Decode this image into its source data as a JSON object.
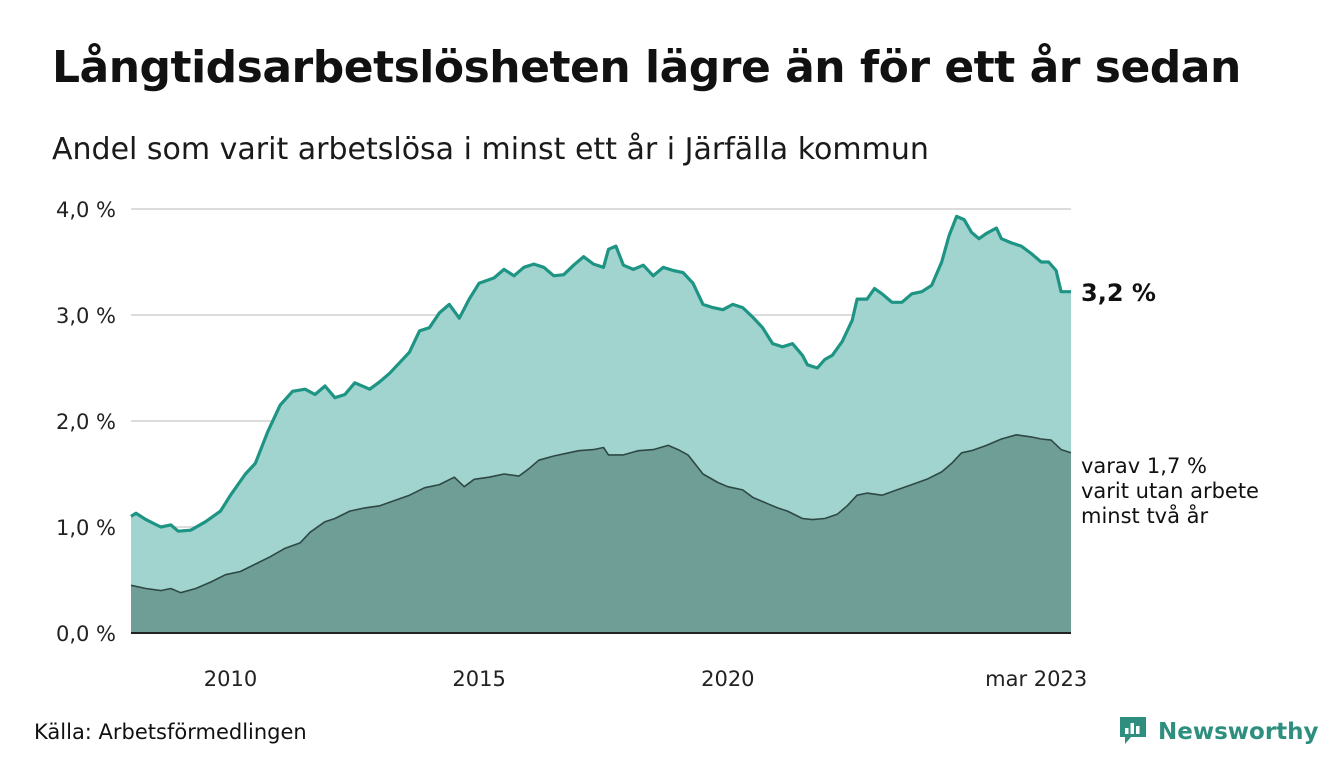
{
  "title": "Långtidsarbetslösheten lägre än för ett år sedan",
  "subtitle": "Andel som varit arbetslösa i minst ett år i Järfälla kommun",
  "source": "Källa: Arbetsförmedlingen",
  "brand": {
    "name": "Newsworthy",
    "icon": "newsworthy-chart-bubble-icon"
  },
  "colors": {
    "upper_line": "#1e9484",
    "upper_fill": "#a1d4ce",
    "lower_fill": "#6f9e96",
    "lower_line": "#2e4945",
    "grid": "#dcdcdc",
    "brand": "#2f8f7f"
  },
  "chart_data": {
    "type": "area",
    "x_start": "2008-01",
    "x_end": "2023-03",
    "x_step": "month",
    "ylim": [
      0,
      4
    ],
    "yticks": [
      "0,0 %",
      "1,0 %",
      "2,0 %",
      "3,0 %",
      "4,0 %"
    ],
    "xticks": [
      "2010",
      "2015",
      "2020",
      "mar 2023"
    ],
    "grid": "horizontal",
    "series": [
      {
        "key": "total",
        "label": "3,2 %",
        "anchors": [
          [
            2008.0,
            1.1
          ],
          [
            2008.1,
            1.13
          ],
          [
            2008.3,
            1.07
          ],
          [
            2008.6,
            1.0
          ],
          [
            2008.8,
            1.02
          ],
          [
            2008.95,
            0.96
          ],
          [
            2009.2,
            0.97
          ],
          [
            2009.5,
            1.05
          ],
          [
            2009.8,
            1.15
          ],
          [
            2010.0,
            1.3
          ],
          [
            2010.3,
            1.5
          ],
          [
            2010.5,
            1.6
          ],
          [
            2010.75,
            1.9
          ],
          [
            2011.0,
            2.15
          ],
          [
            2011.25,
            2.28
          ],
          [
            2011.5,
            2.3
          ],
          [
            2011.7,
            2.25
          ],
          [
            2011.9,
            2.33
          ],
          [
            2012.1,
            2.22
          ],
          [
            2012.3,
            2.25
          ],
          [
            2012.5,
            2.36
          ],
          [
            2012.8,
            2.3
          ],
          [
            2013.0,
            2.37
          ],
          [
            2013.2,
            2.45
          ],
          [
            2013.4,
            2.55
          ],
          [
            2013.6,
            2.65
          ],
          [
            2013.8,
            2.85
          ],
          [
            2014.0,
            2.88
          ],
          [
            2014.2,
            3.02
          ],
          [
            2014.4,
            3.1
          ],
          [
            2014.6,
            2.97
          ],
          [
            2014.8,
            3.15
          ],
          [
            2015.0,
            3.3
          ],
          [
            2015.3,
            3.35
          ],
          [
            2015.5,
            3.43
          ],
          [
            2015.7,
            3.37
          ],
          [
            2015.9,
            3.45
          ],
          [
            2016.1,
            3.48
          ],
          [
            2016.3,
            3.45
          ],
          [
            2016.5,
            3.37
          ],
          [
            2016.7,
            3.38
          ],
          [
            2016.9,
            3.47
          ],
          [
            2017.1,
            3.55
          ],
          [
            2017.3,
            3.48
          ],
          [
            2017.5,
            3.45
          ],
          [
            2017.6,
            3.62
          ],
          [
            2017.75,
            3.65
          ],
          [
            2017.9,
            3.47
          ],
          [
            2018.1,
            3.43
          ],
          [
            2018.3,
            3.47
          ],
          [
            2018.5,
            3.37
          ],
          [
            2018.7,
            3.45
          ],
          [
            2018.9,
            3.42
          ],
          [
            2019.1,
            3.4
          ],
          [
            2019.3,
            3.3
          ],
          [
            2019.5,
            3.1
          ],
          [
            2019.7,
            3.07
          ],
          [
            2019.9,
            3.05
          ],
          [
            2020.1,
            3.1
          ],
          [
            2020.3,
            3.07
          ],
          [
            2020.5,
            2.98
          ],
          [
            2020.7,
            2.88
          ],
          [
            2020.9,
            2.73
          ],
          [
            2021.1,
            2.7
          ],
          [
            2021.3,
            2.73
          ],
          [
            2021.5,
            2.62
          ],
          [
            2021.6,
            2.53
          ],
          [
            2021.8,
            2.5
          ],
          [
            2021.95,
            2.58
          ],
          [
            2022.1,
            2.62
          ],
          [
            2022.3,
            2.75
          ],
          [
            2022.5,
            2.95
          ],
          [
            2022.6,
            3.15
          ],
          [
            2022.8,
            3.15
          ],
          [
            2022.95,
            3.25
          ],
          [
            2023.1,
            3.2
          ],
          [
            2023.3,
            3.12
          ],
          [
            2023.5,
            3.12
          ],
          [
            2023.7,
            3.2
          ],
          [
            2023.9,
            3.22
          ],
          [
            2024.1,
            3.28
          ],
          [
            2024.3,
            3.5
          ],
          [
            2024.45,
            3.75
          ],
          [
            2024.6,
            3.93
          ],
          [
            2024.75,
            3.9
          ],
          [
            2024.9,
            3.78
          ],
          [
            2025.05,
            3.72
          ],
          [
            2025.2,
            3.77
          ],
          [
            2025.4,
            3.82
          ],
          [
            2025.5,
            3.72
          ],
          [
            2025.7,
            3.68
          ],
          [
            2025.9,
            3.65
          ],
          [
            2026.1,
            3.58
          ],
          [
            2026.3,
            3.5
          ],
          [
            2026.45,
            3.5
          ],
          [
            2026.6,
            3.42
          ],
          [
            2026.7,
            3.22
          ],
          [
            2026.9,
            3.22
          ]
        ]
      },
      {
        "key": "two_years",
        "label": [
          "varav 1,7 %",
          "varit utan arbete",
          "minst två år"
        ],
        "anchors": [
          [
            2008.0,
            0.45
          ],
          [
            2008.3,
            0.42
          ],
          [
            2008.6,
            0.4
          ],
          [
            2008.8,
            0.42
          ],
          [
            2009.0,
            0.38
          ],
          [
            2009.3,
            0.42
          ],
          [
            2009.6,
            0.48
          ],
          [
            2009.9,
            0.55
          ],
          [
            2010.2,
            0.58
          ],
          [
            2010.5,
            0.65
          ],
          [
            2010.8,
            0.72
          ],
          [
            2011.1,
            0.8
          ],
          [
            2011.4,
            0.85
          ],
          [
            2011.6,
            0.95
          ],
          [
            2011.9,
            1.05
          ],
          [
            2012.1,
            1.08
          ],
          [
            2012.4,
            1.15
          ],
          [
            2012.7,
            1.18
          ],
          [
            2013.0,
            1.2
          ],
          [
            2013.3,
            1.25
          ],
          [
            2013.6,
            1.3
          ],
          [
            2013.9,
            1.37
          ],
          [
            2014.2,
            1.4
          ],
          [
            2014.5,
            1.47
          ],
          [
            2014.7,
            1.38
          ],
          [
            2014.9,
            1.45
          ],
          [
            2015.2,
            1.47
          ],
          [
            2015.5,
            1.5
          ],
          [
            2015.8,
            1.48
          ],
          [
            2016.0,
            1.55
          ],
          [
            2016.2,
            1.63
          ],
          [
            2016.5,
            1.67
          ],
          [
            2016.8,
            1.7
          ],
          [
            2017.0,
            1.72
          ],
          [
            2017.3,
            1.73
          ],
          [
            2017.5,
            1.75
          ],
          [
            2017.6,
            1.68
          ],
          [
            2017.9,
            1.68
          ],
          [
            2018.2,
            1.72
          ],
          [
            2018.5,
            1.73
          ],
          [
            2018.8,
            1.77
          ],
          [
            2019.0,
            1.73
          ],
          [
            2019.2,
            1.68
          ],
          [
            2019.5,
            1.5
          ],
          [
            2019.8,
            1.42
          ],
          [
            2020.0,
            1.38
          ],
          [
            2020.3,
            1.35
          ],
          [
            2020.5,
            1.28
          ],
          [
            2020.8,
            1.22
          ],
          [
            2021.0,
            1.18
          ],
          [
            2021.2,
            1.15
          ],
          [
            2021.5,
            1.08
          ],
          [
            2021.7,
            1.07
          ],
          [
            2021.95,
            1.08
          ],
          [
            2022.2,
            1.12
          ],
          [
            2022.4,
            1.2
          ],
          [
            2022.6,
            1.3
          ],
          [
            2022.8,
            1.32
          ],
          [
            2023.1,
            1.3
          ],
          [
            2023.4,
            1.35
          ],
          [
            2023.7,
            1.4
          ],
          [
            2024.0,
            1.45
          ],
          [
            2024.3,
            1.52
          ],
          [
            2024.5,
            1.6
          ],
          [
            2024.7,
            1.7
          ],
          [
            2024.9,
            1.72
          ],
          [
            2025.2,
            1.77
          ],
          [
            2025.5,
            1.83
          ],
          [
            2025.8,
            1.87
          ],
          [
            2026.1,
            1.85
          ],
          [
            2026.3,
            1.83
          ],
          [
            2026.5,
            1.82
          ],
          [
            2026.7,
            1.73
          ],
          [
            2026.9,
            1.7
          ]
        ]
      }
    ]
  }
}
